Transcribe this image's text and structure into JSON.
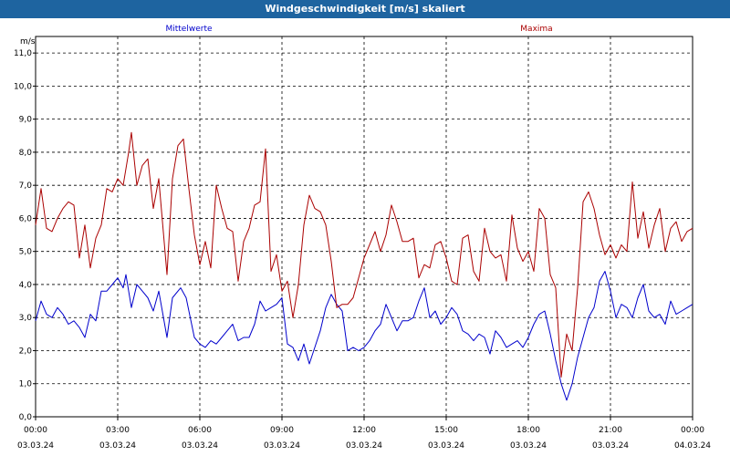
{
  "window": {
    "title": "Windgeschwindigkeit [m/s] skaliert"
  },
  "chart_data": {
    "type": "line",
    "title": "Windgeschwindigkeit [m/s] skaliert",
    "ylabel": "m/s",
    "ylim": [
      0,
      11.5
    ],
    "xlim_hours": [
      0,
      24
    ],
    "grid": true,
    "yticks": [
      "0,0",
      "1,0",
      "2,0",
      "3,0",
      "4,0",
      "5,0",
      "6,0",
      "7,0",
      "8,0",
      "9,0",
      "10,0",
      "11,0"
    ],
    "xticks": [
      {
        "time": "00:00",
        "date": "03.03.24"
      },
      {
        "time": "03:00",
        "date": "03.03.24"
      },
      {
        "time": "06:00",
        "date": "03.03.24"
      },
      {
        "time": "09:00",
        "date": "03.03.24"
      },
      {
        "time": "12:00",
        "date": "03.03.24"
      },
      {
        "time": "15:00",
        "date": "03.03.24"
      },
      {
        "time": "18:00",
        "date": "03.03.24"
      },
      {
        "time": "21:00",
        "date": "03.03.24"
      },
      {
        "time": "00:00",
        "date": "04.03.24"
      }
    ],
    "series": [
      {
        "name": "Mittelwerte",
        "color": "#0000cc",
        "points": [
          [
            0.0,
            2.9
          ],
          [
            0.2,
            3.5
          ],
          [
            0.4,
            3.1
          ],
          [
            0.6,
            3.0
          ],
          [
            0.8,
            3.3
          ],
          [
            1.0,
            3.1
          ],
          [
            1.2,
            2.8
          ],
          [
            1.4,
            2.9
          ],
          [
            1.6,
            2.7
          ],
          [
            1.8,
            2.4
          ],
          [
            2.0,
            3.1
          ],
          [
            2.2,
            2.9
          ],
          [
            2.4,
            3.8
          ],
          [
            2.6,
            3.8
          ],
          [
            2.8,
            4.0
          ],
          [
            3.0,
            4.2
          ],
          [
            3.2,
            3.9
          ],
          [
            3.3,
            4.3
          ],
          [
            3.5,
            3.3
          ],
          [
            3.7,
            4.0
          ],
          [
            3.9,
            3.8
          ],
          [
            4.1,
            3.6
          ],
          [
            4.3,
            3.2
          ],
          [
            4.5,
            3.8
          ],
          [
            4.8,
            2.4
          ],
          [
            5.0,
            3.6
          ],
          [
            5.3,
            3.9
          ],
          [
            5.5,
            3.6
          ],
          [
            5.8,
            2.4
          ],
          [
            6.0,
            2.2
          ],
          [
            6.2,
            2.1
          ],
          [
            6.4,
            2.3
          ],
          [
            6.6,
            2.2
          ],
          [
            6.8,
            2.4
          ],
          [
            7.0,
            2.6
          ],
          [
            7.2,
            2.8
          ],
          [
            7.4,
            2.3
          ],
          [
            7.6,
            2.4
          ],
          [
            7.8,
            2.4
          ],
          [
            8.0,
            2.8
          ],
          [
            8.2,
            3.5
          ],
          [
            8.4,
            3.2
          ],
          [
            8.6,
            3.3
          ],
          [
            8.8,
            3.4
          ],
          [
            9.0,
            3.6
          ],
          [
            9.2,
            2.2
          ],
          [
            9.4,
            2.1
          ],
          [
            9.6,
            1.7
          ],
          [
            9.8,
            2.2
          ],
          [
            10.0,
            1.6
          ],
          [
            10.2,
            2.1
          ],
          [
            10.4,
            2.6
          ],
          [
            10.6,
            3.3
          ],
          [
            10.8,
            3.7
          ],
          [
            11.0,
            3.4
          ],
          [
            11.2,
            3.2
          ],
          [
            11.4,
            2.0
          ],
          [
            11.6,
            2.1
          ],
          [
            11.8,
            2.0
          ],
          [
            12.0,
            2.1
          ],
          [
            12.2,
            2.3
          ],
          [
            12.4,
            2.6
          ],
          [
            12.6,
            2.8
          ],
          [
            12.8,
            3.4
          ],
          [
            13.0,
            3.0
          ],
          [
            13.2,
            2.6
          ],
          [
            13.4,
            2.9
          ],
          [
            13.6,
            2.9
          ],
          [
            13.8,
            3.0
          ],
          [
            14.0,
            3.5
          ],
          [
            14.2,
            3.9
          ],
          [
            14.4,
            3.0
          ],
          [
            14.6,
            3.2
          ],
          [
            14.8,
            2.8
          ],
          [
            15.0,
            3.0
          ],
          [
            15.2,
            3.3
          ],
          [
            15.4,
            3.1
          ],
          [
            15.6,
            2.6
          ],
          [
            15.8,
            2.5
          ],
          [
            16.0,
            2.3
          ],
          [
            16.2,
            2.5
          ],
          [
            16.4,
            2.4
          ],
          [
            16.6,
            1.9
          ],
          [
            16.8,
            2.6
          ],
          [
            17.0,
            2.4
          ],
          [
            17.2,
            2.1
          ],
          [
            17.4,
            2.2
          ],
          [
            17.6,
            2.3
          ],
          [
            17.8,
            2.1
          ],
          [
            18.0,
            2.4
          ],
          [
            18.2,
            2.8
          ],
          [
            18.4,
            3.1
          ],
          [
            18.6,
            3.2
          ],
          [
            18.8,
            2.5
          ],
          [
            19.0,
            1.7
          ],
          [
            19.2,
            1.0
          ],
          [
            19.4,
            0.5
          ],
          [
            19.6,
            1.0
          ],
          [
            19.8,
            1.8
          ],
          [
            20.0,
            2.4
          ],
          [
            20.2,
            3.0
          ],
          [
            20.4,
            3.3
          ],
          [
            20.6,
            4.1
          ],
          [
            20.8,
            4.4
          ],
          [
            21.0,
            3.8
          ],
          [
            21.2,
            3.0
          ],
          [
            21.4,
            3.4
          ],
          [
            21.6,
            3.3
          ],
          [
            21.8,
            3.0
          ],
          [
            22.0,
            3.6
          ],
          [
            22.2,
            4.0
          ],
          [
            22.4,
            3.2
          ],
          [
            22.6,
            3.0
          ],
          [
            22.8,
            3.1
          ],
          [
            23.0,
            2.8
          ],
          [
            23.2,
            3.5
          ],
          [
            23.4,
            3.1
          ],
          [
            23.6,
            3.2
          ],
          [
            23.8,
            3.3
          ],
          [
            24.0,
            3.4
          ]
        ]
      },
      {
        "name": "Maxima",
        "color": "#aa0000",
        "points": [
          [
            0.0,
            5.8
          ],
          [
            0.2,
            6.9
          ],
          [
            0.4,
            5.7
          ],
          [
            0.6,
            5.6
          ],
          [
            0.8,
            6.0
          ],
          [
            1.0,
            6.3
          ],
          [
            1.2,
            6.5
          ],
          [
            1.4,
            6.4
          ],
          [
            1.6,
            4.8
          ],
          [
            1.8,
            5.8
          ],
          [
            2.0,
            4.5
          ],
          [
            2.2,
            5.4
          ],
          [
            2.4,
            5.8
          ],
          [
            2.6,
            6.9
          ],
          [
            2.8,
            6.8
          ],
          [
            3.0,
            7.2
          ],
          [
            3.2,
            7.0
          ],
          [
            3.4,
            8.0
          ],
          [
            3.5,
            8.6
          ],
          [
            3.7,
            7.0
          ],
          [
            3.9,
            7.6
          ],
          [
            4.1,
            7.8
          ],
          [
            4.3,
            6.3
          ],
          [
            4.5,
            7.2
          ],
          [
            4.8,
            4.3
          ],
          [
            5.0,
            7.2
          ],
          [
            5.2,
            8.2
          ],
          [
            5.4,
            8.4
          ],
          [
            5.6,
            6.9
          ],
          [
            5.8,
            5.5
          ],
          [
            6.0,
            4.6
          ],
          [
            6.2,
            5.3
          ],
          [
            6.4,
            4.5
          ],
          [
            6.6,
            7.0
          ],
          [
            6.8,
            6.3
          ],
          [
            7.0,
            5.7
          ],
          [
            7.2,
            5.6
          ],
          [
            7.4,
            4.1
          ],
          [
            7.6,
            5.3
          ],
          [
            7.8,
            5.7
          ],
          [
            8.0,
            6.4
          ],
          [
            8.2,
            6.5
          ],
          [
            8.4,
            8.1
          ],
          [
            8.6,
            4.4
          ],
          [
            8.8,
            4.9
          ],
          [
            9.0,
            3.8
          ],
          [
            9.2,
            4.1
          ],
          [
            9.4,
            3.0
          ],
          [
            9.6,
            4.0
          ],
          [
            9.8,
            5.8
          ],
          [
            10.0,
            6.7
          ],
          [
            10.2,
            6.3
          ],
          [
            10.4,
            6.2
          ],
          [
            10.6,
            5.8
          ],
          [
            10.8,
            4.7
          ],
          [
            11.0,
            3.3
          ],
          [
            11.2,
            3.4
          ],
          [
            11.4,
            3.4
          ],
          [
            11.6,
            3.6
          ],
          [
            11.8,
            4.2
          ],
          [
            12.0,
            4.8
          ],
          [
            12.2,
            5.2
          ],
          [
            12.4,
            5.6
          ],
          [
            12.6,
            5.0
          ],
          [
            12.8,
            5.5
          ],
          [
            13.0,
            6.4
          ],
          [
            13.2,
            5.9
          ],
          [
            13.4,
            5.3
          ],
          [
            13.6,
            5.3
          ],
          [
            13.8,
            5.4
          ],
          [
            14.0,
            4.2
          ],
          [
            14.2,
            4.6
          ],
          [
            14.4,
            4.5
          ],
          [
            14.6,
            5.2
          ],
          [
            14.8,
            5.3
          ],
          [
            15.0,
            4.8
          ],
          [
            15.2,
            4.1
          ],
          [
            15.4,
            4.0
          ],
          [
            15.6,
            5.4
          ],
          [
            15.8,
            5.5
          ],
          [
            16.0,
            4.4
          ],
          [
            16.2,
            4.1
          ],
          [
            16.4,
            5.7
          ],
          [
            16.6,
            5.0
          ],
          [
            16.8,
            4.8
          ],
          [
            17.0,
            4.9
          ],
          [
            17.2,
            4.1
          ],
          [
            17.4,
            6.1
          ],
          [
            17.6,
            5.1
          ],
          [
            17.8,
            4.7
          ],
          [
            18.0,
            5.0
          ],
          [
            18.2,
            4.4
          ],
          [
            18.4,
            6.3
          ],
          [
            18.6,
            6.0
          ],
          [
            18.8,
            4.3
          ],
          [
            19.0,
            3.9
          ],
          [
            19.2,
            1.2
          ],
          [
            19.4,
            2.5
          ],
          [
            19.6,
            2.0
          ],
          [
            19.8,
            3.9
          ],
          [
            20.0,
            6.5
          ],
          [
            20.2,
            6.8
          ],
          [
            20.4,
            6.3
          ],
          [
            20.6,
            5.5
          ],
          [
            20.8,
            4.9
          ],
          [
            21.0,
            5.2
          ],
          [
            21.2,
            4.8
          ],
          [
            21.4,
            5.2
          ],
          [
            21.6,
            5.0
          ],
          [
            21.8,
            7.1
          ],
          [
            22.0,
            5.4
          ],
          [
            22.2,
            6.2
          ],
          [
            22.4,
            5.1
          ],
          [
            22.6,
            5.8
          ],
          [
            22.8,
            6.3
          ],
          [
            23.0,
            5.0
          ],
          [
            23.2,
            5.7
          ],
          [
            23.4,
            5.9
          ],
          [
            23.6,
            5.3
          ],
          [
            23.8,
            5.6
          ],
          [
            24.0,
            5.7
          ]
        ]
      }
    ]
  }
}
